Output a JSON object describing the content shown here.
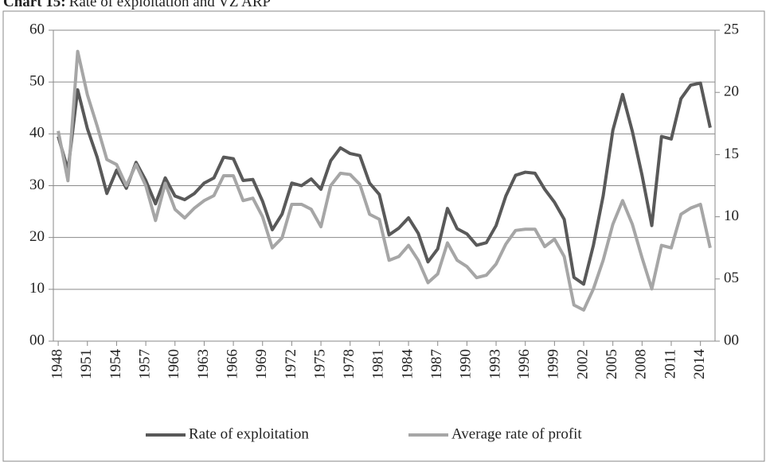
{
  "chart_data": {
    "type": "line",
    "title_label": "Chart 15:",
    "title": "Rate of exploitation and VZ ARP",
    "x": [
      1948,
      1949,
      1950,
      1951,
      1952,
      1953,
      1954,
      1955,
      1956,
      1957,
      1958,
      1959,
      1960,
      1961,
      1962,
      1963,
      1964,
      1965,
      1966,
      1967,
      1968,
      1969,
      1970,
      1971,
      1972,
      1973,
      1974,
      1975,
      1976,
      1977,
      1978,
      1979,
      1980,
      1981,
      1982,
      1983,
      1984,
      1985,
      1986,
      1987,
      1988,
      1989,
      1990,
      1991,
      1992,
      1993,
      1994,
      1995,
      1996,
      1997,
      1998,
      1999,
      2000,
      2001,
      2002,
      2003,
      2004,
      2005,
      2006,
      2007,
      2008,
      2009,
      2010,
      2011,
      2012,
      2013,
      2014,
      2015
    ],
    "xlim": [
      1947.5,
      2015.5
    ],
    "xticks": [
      1948,
      1951,
      1954,
      1957,
      1960,
      1963,
      1966,
      1969,
      1972,
      1975,
      1978,
      1981,
      1984,
      1987,
      1990,
      1993,
      1996,
      1999,
      2002,
      2005,
      2008,
      2011,
      2014
    ],
    "ylim": [
      0,
      60
    ],
    "yticks": [
      {
        "value": 0,
        "label": "00"
      },
      10,
      20,
      30,
      40,
      50,
      60
    ],
    "y2lim": [
      0,
      25
    ],
    "y2ticks": [
      {
        "value": 0,
        "label": "00"
      },
      {
        "value": 5,
        "label": "05"
      },
      10,
      15,
      20,
      25
    ],
    "grid": true,
    "legend": "bottom",
    "series": [
      {
        "name": "Rate of exploitation",
        "color": "#595959",
        "values": [
          39.5,
          33,
          48.5,
          41,
          35.5,
          28.5,
          33,
          29.5,
          34.5,
          31,
          26.5,
          31.5,
          28,
          27.3,
          28.5,
          30.5,
          31.5,
          35.5,
          35.2,
          31,
          31.2,
          27,
          21.5,
          24.5,
          30.5,
          30,
          31.3,
          29.3,
          34.8,
          37.3,
          36.2,
          35.8,
          30.5,
          28.3,
          20.5,
          21.8,
          23.8,
          20.8,
          15.3,
          17.8,
          25.6,
          21.7,
          20.7,
          18.5,
          19,
          22.3,
          28,
          32,
          32.6,
          32.4,
          29.3,
          26.8,
          23.5,
          12.3,
          11,
          18.5,
          28,
          40.7,
          47.6,
          40.5,
          32,
          22.3,
          39.5,
          39,
          46.8,
          49.4,
          49.8,
          41.2
        ]
      },
      {
        "name": "Average rate of profit",
        "color": "#a6a6a6",
        "axis": "y2",
        "values": [
          16.9,
          12.9,
          23.3,
          19.8,
          17.3,
          14.6,
          14.2,
          12.5,
          14.2,
          12.5,
          9.7,
          12.7,
          10.6,
          9.9,
          10.7,
          11.3,
          11.7,
          13.3,
          13.3,
          11.3,
          11.5,
          10,
          7.5,
          8.3,
          11,
          11,
          10.6,
          9.2,
          12.5,
          13.5,
          13.4,
          12.6,
          10.2,
          9.8,
          6.5,
          6.8,
          7.7,
          6.5,
          4.7,
          5.4,
          7.9,
          6.5,
          6,
          5.1,
          5.3,
          6.2,
          7.8,
          8.9,
          9,
          9,
          7.6,
          8.2,
          6.8,
          2.9,
          2.5,
          4.2,
          6.5,
          9.4,
          11.3,
          9.4,
          6.7,
          4.2,
          7.7,
          7.5,
          10.2,
          10.7,
          11,
          7.5
        ]
      }
    ]
  }
}
